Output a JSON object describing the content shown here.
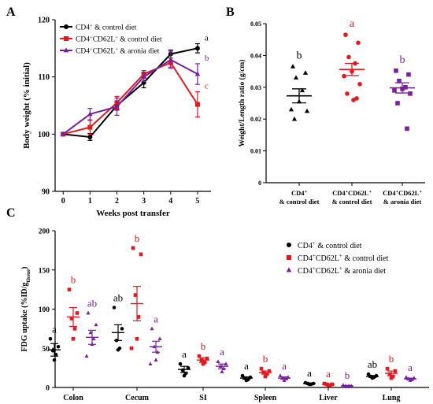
{
  "colors": {
    "control": "#000000",
    "cd62l": "#e8171c",
    "aronia": "#7a1fa2"
  },
  "panels": {
    "a": "A",
    "b": "B",
    "c": "C"
  },
  "chart_data": [
    {
      "type": "line",
      "xlabel": "Weeks post transfer",
      "ylabel": "Body weight (% initial)",
      "xlim": [
        -0.3,
        5.5
      ],
      "ylim": [
        90,
        120
      ],
      "x_ticks": [
        "0",
        "1",
        "2",
        "3",
        "4",
        "5"
      ],
      "y_ticks": [
        "90",
        "100",
        "110",
        "120"
      ],
      "legend_position": "top-left",
      "x": [
        0,
        1,
        2,
        3,
        4,
        5
      ],
      "series": [
        {
          "name": "CD4+ & control diet",
          "values": [
            100,
            99.5,
            105,
            109,
            114,
            115
          ],
          "err": [
            0.2,
            0.6,
            0.8,
            0.9,
            0.7,
            0.8
          ],
          "marker": "circle",
          "color_key": "control",
          "letter": "a"
        },
        {
          "name": "CD4+CD62L+ & control diet",
          "values": [
            100,
            101.2,
            105.5,
            110.5,
            112.5,
            105.2
          ],
          "err": [
            0.2,
            1.2,
            1.1,
            0.6,
            0.8,
            2.2
          ],
          "marker": "square",
          "color_key": "cd62l",
          "letter": "c"
        },
        {
          "name": "CD4+CD62L+ & aronia diet",
          "values": [
            100,
            103.5,
            104.8,
            110,
            113,
            110.5
          ],
          "err": [
            0.2,
            1.0,
            1.5,
            0.8,
            1.5,
            1.8
          ],
          "marker": "triangle",
          "color_key": "aronia",
          "letter": "b"
        }
      ]
    },
    {
      "type": "scatter",
      "ylabel": "Weight/Length ratio (g/cm)",
      "ylim": [
        0,
        0.05
      ],
      "y_ticks": [
        "0",
        "0.01",
        "0.02",
        "0.03",
        "0.04",
        "0.05"
      ],
      "categories": [
        "CD4+ & control diet",
        "CD4+CD62L+ & control diet",
        "CD4+CD62L+ & aronia diet"
      ],
      "groups": [
        {
          "name": "CD4+ & control diet",
          "color_key": "control",
          "marker": "triangle",
          "letter": "b",
          "mean": 0.0273,
          "sem": 0.0022,
          "points": [
            0.0365,
            0.0345,
            0.033,
            0.029,
            0.0255,
            0.023,
            0.0225,
            0.02
          ]
        },
        {
          "name": "CD4+CD62L+ & control diet",
          "color_key": "cd62l",
          "marker": "circle",
          "letter": "a",
          "mean": 0.0356,
          "sem": 0.0019,
          "points": [
            0.0465,
            0.044,
            0.0395,
            0.0375,
            0.035,
            0.0335,
            0.031,
            0.028,
            0.0265,
            0.026
          ]
        },
        {
          "name": "CD4+CD62L+ & aronia diet",
          "color_key": "aronia",
          "marker": "square",
          "letter": "b",
          "mean": 0.0298,
          "sem": 0.0016,
          "points": [
            0.0352,
            0.034,
            0.032,
            0.03,
            0.0295,
            0.029,
            0.028,
            0.025,
            0.017
          ]
        }
      ]
    },
    {
      "type": "scatter",
      "ylabel": "FDG uptake (%ID/g",
      "ylabel_sub": "tissue",
      "ylabel_tail": ")",
      "ylim": [
        0,
        200
      ],
      "y_ticks": [
        "0",
        "50",
        "100",
        "150",
        "200"
      ],
      "categories": [
        "Colon",
        "Cecum",
        "SI",
        "Spleen",
        "Liver",
        "Lung"
      ],
      "legend_position": "top-right",
      "series": [
        {
          "name": "CD4+ & control diet",
          "color_key": "control",
          "marker": "circle",
          "letters": [
            "a",
            "ab",
            "a",
            "a",
            "a",
            "ab"
          ],
          "means": [
            48,
            70,
            23,
            12,
            5,
            14
          ],
          "sems": [
            8,
            10,
            4,
            1.5,
            0.8,
            1.2
          ],
          "points": [
            [
              62,
              52,
              47,
              42,
              35
            ],
            [
              102,
              75,
              60,
              50,
              48
            ],
            [
              30,
              25,
              22,
              18,
              15
            ],
            [
              15,
              13,
              12,
              10,
              9
            ],
            [
              6,
              5,
              5,
              4,
              4
            ],
            [
              17,
              15,
              14,
              13,
              12
            ]
          ]
        },
        {
          "name": "CD4+CD62L+ & control diet",
          "color_key": "cd62l",
          "marker": "square",
          "letters": [
            "b",
            "b",
            "b",
            "b",
            "a",
            "b"
          ],
          "means": [
            90,
            107,
            35,
            19,
            4,
            18
          ],
          "sems": [
            12,
            22,
            3,
            2,
            0.8,
            3
          ],
          "points": [
            [
              125,
              95,
              88,
              75,
              62
            ],
            [
              178,
              170,
              118,
              90,
              62,
              50
            ],
            [
              40,
              37,
              35,
              32,
              30
            ],
            [
              24,
              21,
              19,
              17,
              14
            ],
            [
              5,
              4,
              4,
              3,
              3
            ],
            [
              24,
              21,
              17,
              14,
              12
            ]
          ]
        },
        {
          "name": "CD4+CD62L+ & aronia diet",
          "color_key": "aronia",
          "marker": "triangle",
          "letters": [
            "ab",
            "a",
            "a",
            "a",
            "b",
            "a"
          ],
          "means": [
            64,
            52,
            27,
            12,
            2,
            11
          ],
          "sems": [
            9,
            7,
            3,
            1.5,
            0.5,
            1
          ],
          "points": [
            [
              95,
              80,
              70,
              62,
              55,
              40
            ],
            [
              75,
              62,
              52,
              45,
              35,
              30
            ],
            [
              33,
              30,
              27,
              24,
              20
            ],
            [
              15,
              13,
              12,
              11,
              9
            ],
            [
              3,
              2,
              2,
              2,
              1
            ],
            [
              13,
              12,
              11,
              10,
              9
            ]
          ]
        }
      ]
    }
  ]
}
